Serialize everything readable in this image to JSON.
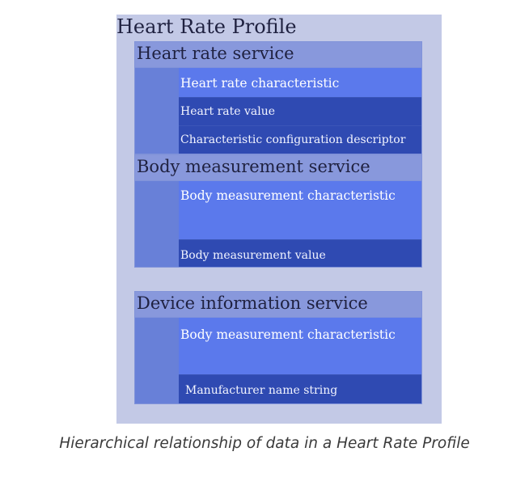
{
  "diagram": {
    "title": "Heart Rate Profile",
    "services": [
      {
        "title": "Heart rate service",
        "characteristic": "Heart rate characteristic",
        "items": [
          "Heart rate value",
          "Characteristic configuration descriptor"
        ]
      },
      {
        "title": "Body measurement service",
        "characteristic": "Body measurement characteristic",
        "items": [
          "Body measurement value"
        ]
      },
      {
        "title": "Device information service",
        "characteristic": "Body measurement characteristic",
        "items": [
          "Manufacturer name string"
        ]
      }
    ]
  },
  "caption": "Hierarchical relationship of data in a Heart Rate Profile",
  "colors": {
    "profile_background": "#c3c9e6",
    "service_header": "#8898dc",
    "service_body": "#6880d8",
    "characteristic": "#5b79ec",
    "value": "#2f4ab2"
  }
}
